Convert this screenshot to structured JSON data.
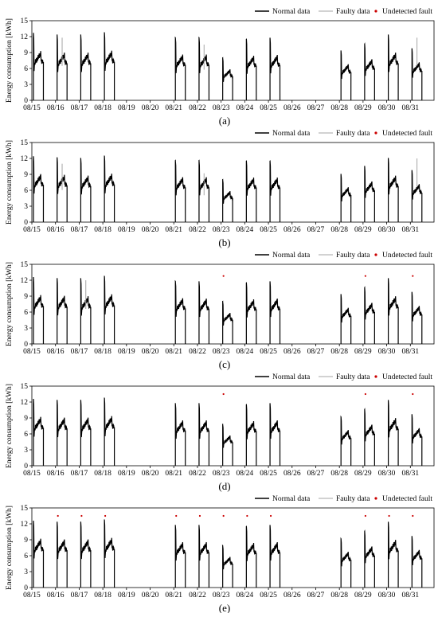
{
  "figure": {
    "panels_note": "",
    "legend": {
      "normal": "Normal data",
      "faulty": "Faulty data",
      "undetected": "Undetected fault"
    },
    "colors": {
      "normal": "#000000",
      "faulty": "#a6a6a6",
      "undetected": "#cc0000"
    }
  },
  "chart_data": [
    {
      "type": "line",
      "caption": "(a)",
      "ylabel": "Energy consumption [kWh]",
      "xlabel": "",
      "ylim": [
        0,
        15
      ],
      "yticks": [
        0,
        3,
        6,
        9,
        12,
        15
      ],
      "xtick_labels": [
        "08/15",
        "08/16",
        "08/17",
        "08/18",
        "08/19",
        "08/20",
        "08/21",
        "08/22",
        "08/23",
        "08/24",
        "08/25",
        "08/26",
        "08/27",
        "08/28",
        "08/29",
        "08/30",
        "08/31"
      ],
      "legend_position": "top-right",
      "series": [
        {
          "name": "Normal data",
          "days": [
            "08/15",
            "08/16",
            "08/17",
            "08/18",
            "08/21",
            "08/22",
            "08/23",
            "08/24",
            "08/25",
            "08/28",
            "08/29",
            "08/30",
            "08/31"
          ],
          "daily_peak": [
            12.7,
            12.3,
            12.3,
            12.8,
            11.8,
            11.8,
            8.0,
            11.5,
            11.7,
            9.3,
            10.6,
            12.3,
            9.8
          ]
        },
        {
          "name": "Faulty data",
          "days": [
            "08/16",
            "08/22",
            "08/31"
          ],
          "spike_values": [
            11.8,
            10.5,
            11.8
          ]
        },
        {
          "name": "Undetected fault",
          "x": [],
          "y": []
        }
      ]
    },
    {
      "type": "line",
      "caption": "(b)",
      "ylabel": "Energy consumption [kWh]",
      "xlabel": "",
      "ylim": [
        0,
        15
      ],
      "yticks": [
        0,
        3,
        6,
        9,
        12,
        15
      ],
      "xtick_labels": [
        "08/15",
        "08/16",
        "08/17",
        "08/18",
        "08/19",
        "08/20",
        "08/21",
        "08/22",
        "08/23",
        "08/24",
        "08/25",
        "08/26",
        "08/27",
        "08/28",
        "08/29",
        "08/30",
        "08/31"
      ],
      "legend_position": "top-right",
      "series": [
        {
          "name": "Normal data",
          "days": [
            "08/15",
            "08/16",
            "08/17",
            "08/18",
            "08/21",
            "08/22",
            "08/23",
            "08/24",
            "08/25",
            "08/28",
            "08/29",
            "08/30",
            "08/31"
          ],
          "daily_peak": [
            12.4,
            12.2,
            12.0,
            12.5,
            11.6,
            11.6,
            8.0,
            11.5,
            11.5,
            9.0,
            10.5,
            12.0,
            9.8
          ]
        },
        {
          "name": "Faulty data",
          "days": [
            "08/16",
            "08/22",
            "08/31"
          ],
          "spike_values": [
            11.0,
            9.2,
            12.0
          ]
        },
        {
          "name": "Undetected fault",
          "x": [],
          "y": []
        }
      ]
    },
    {
      "type": "line",
      "caption": "(c)",
      "ylabel": "Energy consumption [kWh]",
      "xlabel": "",
      "ylim": [
        0,
        15
      ],
      "yticks": [
        0,
        3,
        6,
        9,
        12,
        15
      ],
      "xtick_labels": [
        "08/15",
        "08/16",
        "08/17",
        "08/18",
        "08/19",
        "08/20",
        "08/21",
        "08/22",
        "08/23",
        "08/24",
        "08/25",
        "08/26",
        "08/27",
        "08/28",
        "08/29",
        "08/30",
        "08/31"
      ],
      "legend_position": "top-right",
      "series": [
        {
          "name": "Normal data",
          "days": [
            "08/15",
            "08/16",
            "08/17",
            "08/18",
            "08/21",
            "08/22",
            "08/23",
            "08/24",
            "08/25",
            "08/28",
            "08/29",
            "08/30",
            "08/31"
          ],
          "daily_peak": [
            12.6,
            12.4,
            12.3,
            12.8,
            11.8,
            11.7,
            8.0,
            11.5,
            11.7,
            9.3,
            10.6,
            12.3,
            9.8
          ]
        },
        {
          "name": "Faulty data",
          "days": [
            "08/17"
          ],
          "spike_values": [
            12.0
          ]
        },
        {
          "name": "Undetected fault",
          "x": [
            "08/23",
            "08/29",
            "08/31"
          ],
          "y": [
            12.8,
            12.8,
            12.8
          ]
        }
      ]
    },
    {
      "type": "line",
      "caption": "(d)",
      "ylabel": "Energy consumption [kWh]",
      "xlabel": "",
      "ylim": [
        0,
        15
      ],
      "yticks": [
        0,
        3,
        6,
        9,
        12,
        15
      ],
      "xtick_labels": [
        "08/15",
        "08/16",
        "08/17",
        "08/18",
        "08/19",
        "08/20",
        "08/21",
        "08/22",
        "08/23",
        "08/24",
        "08/25",
        "08/26",
        "08/27",
        "08/28",
        "08/29",
        "08/30",
        "08/31"
      ],
      "legend_position": "top-right",
      "series": [
        {
          "name": "Normal data",
          "days": [
            "08/15",
            "08/16",
            "08/17",
            "08/18",
            "08/21",
            "08/22",
            "08/23",
            "08/24",
            "08/25",
            "08/28",
            "08/29",
            "08/30",
            "08/31"
          ],
          "daily_peak": [
            12.6,
            12.4,
            12.4,
            12.8,
            11.7,
            11.7,
            7.8,
            11.5,
            11.7,
            9.2,
            10.6,
            12.3,
            9.7
          ]
        },
        {
          "name": "Faulty data",
          "days": [],
          "spike_values": []
        },
        {
          "name": "Undetected fault",
          "x": [
            "08/23",
            "08/29",
            "08/31"
          ],
          "y": [
            13.5,
            13.5,
            13.5
          ]
        }
      ]
    },
    {
      "type": "line",
      "caption": "(e)",
      "ylabel": "Energy consumption [kWh]",
      "xlabel": "",
      "ylim": [
        0,
        15
      ],
      "yticks": [
        0,
        3,
        6,
        9,
        12,
        15
      ],
      "xtick_labels": [
        "08/15",
        "08/16",
        "08/17",
        "08/18",
        "08/19",
        "08/20",
        "08/21",
        "08/22",
        "08/23",
        "08/24",
        "08/25",
        "08/26",
        "08/27",
        "08/28",
        "08/29",
        "08/30",
        "08/31"
      ],
      "legend_position": "top-right",
      "series": [
        {
          "name": "Normal data",
          "days": [
            "08/15",
            "08/16",
            "08/17",
            "08/18",
            "08/21",
            "08/22",
            "08/23",
            "08/24",
            "08/25",
            "08/28",
            "08/29",
            "08/30",
            "08/31"
          ],
          "daily_peak": [
            12.6,
            12.4,
            12.4,
            12.8,
            11.7,
            11.7,
            7.9,
            11.5,
            11.7,
            9.2,
            10.6,
            12.3,
            9.7
          ]
        },
        {
          "name": "Faulty data",
          "days": [],
          "spike_values": []
        },
        {
          "name": "Undetected fault",
          "x": [
            "08/16",
            "08/17",
            "08/18",
            "08/21",
            "08/22",
            "08/23",
            "08/24",
            "08/25",
            "08/29",
            "08/30",
            "08/31"
          ],
          "y": [
            13.5,
            13.5,
            13.5,
            13.5,
            13.5,
            13.5,
            13.5,
            13.5,
            13.5,
            13.5,
            13.5
          ]
        }
      ]
    }
  ]
}
